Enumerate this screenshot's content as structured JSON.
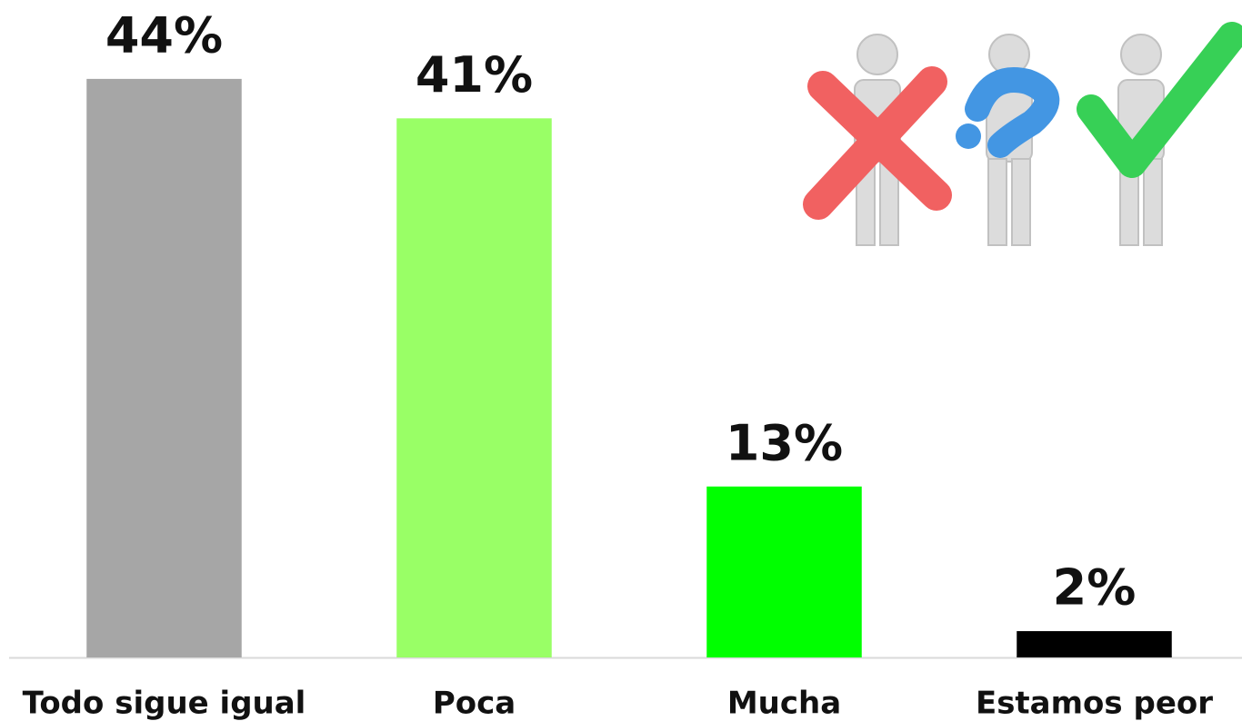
{
  "chart_data": {
    "type": "bar",
    "categories": [
      "Todo sigue igual",
      "Poca",
      "Mucha",
      "Estamos peor"
    ],
    "values": [
      44,
      41,
      13,
      2
    ],
    "value_labels": [
      "44%",
      "41%",
      "13%",
      "2%"
    ],
    "colors": [
      "#a6a6a6",
      "#99ff66",
      "#00ff00",
      "#000000"
    ],
    "ylim": [
      0,
      50
    ]
  }
}
